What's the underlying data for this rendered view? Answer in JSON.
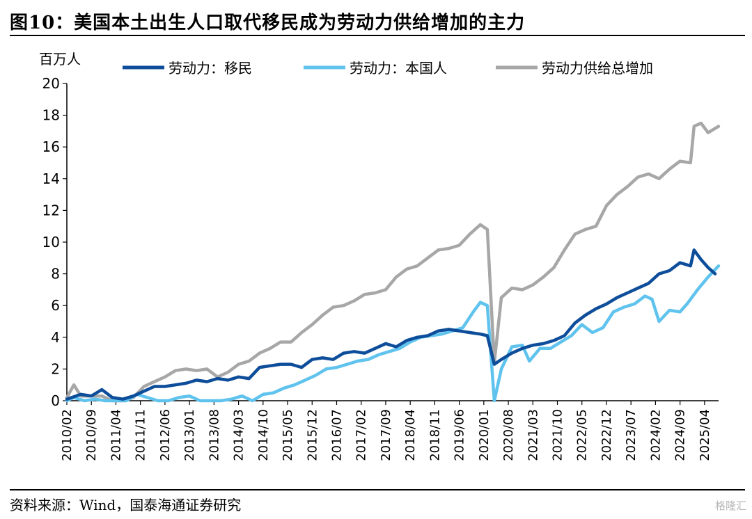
{
  "title": "图10：美国本土出生人口取代移民成为劳动力供给增加的主力",
  "source": "资料来源：Wind，国泰海通证券研究",
  "watermark": "格隆汇",
  "chart_data": {
    "type": "line",
    "unit_label": "百万人",
    "ylim": [
      0,
      20
    ],
    "yticks": [
      0,
      2,
      4,
      6,
      8,
      10,
      12,
      14,
      16,
      18,
      20
    ],
    "xlim": [
      "2010/02",
      "2025/08"
    ],
    "x_tick_labels": [
      "2010/02",
      "2010/09",
      "2011/04",
      "2011/11",
      "2012/06",
      "2013/01",
      "2013/08",
      "2014/03",
      "2014/10",
      "2015/05",
      "2015/12",
      "2016/07",
      "2017/02",
      "2017/09",
      "2018/04",
      "2018/11",
      "2019/06",
      "2020/01",
      "2020/08",
      "2021/03",
      "2021/10",
      "2022/05",
      "2022/12",
      "2023/07",
      "2024/02",
      "2024/09",
      "2025/04"
    ],
    "legend_position": "top",
    "grid": false,
    "series": [
      {
        "name": "劳动力：移民",
        "color": "#0d4d9a",
        "points": [
          [
            "2010/02",
            0.1
          ],
          [
            "2010/06",
            0.4
          ],
          [
            "2010/09",
            0.3
          ],
          [
            "2010/12",
            0.7
          ],
          [
            "2011/03",
            0.2
          ],
          [
            "2011/06",
            0.1
          ],
          [
            "2011/09",
            0.3
          ],
          [
            "2011/12",
            0.6
          ],
          [
            "2012/03",
            0.9
          ],
          [
            "2012/06",
            0.9
          ],
          [
            "2012/09",
            1.0
          ],
          [
            "2012/12",
            1.1
          ],
          [
            "2013/03",
            1.3
          ],
          [
            "2013/06",
            1.2
          ],
          [
            "2013/09",
            1.4
          ],
          [
            "2013/12",
            1.3
          ],
          [
            "2014/03",
            1.5
          ],
          [
            "2014/06",
            1.4
          ],
          [
            "2014/09",
            2.1
          ],
          [
            "2014/12",
            2.2
          ],
          [
            "2015/03",
            2.3
          ],
          [
            "2015/06",
            2.3
          ],
          [
            "2015/09",
            2.1
          ],
          [
            "2015/12",
            2.6
          ],
          [
            "2016/03",
            2.7
          ],
          [
            "2016/06",
            2.6
          ],
          [
            "2016/09",
            3.0
          ],
          [
            "2016/12",
            3.1
          ],
          [
            "2017/03",
            3.0
          ],
          [
            "2017/06",
            3.3
          ],
          [
            "2017/09",
            3.6
          ],
          [
            "2017/12",
            3.4
          ],
          [
            "2018/03",
            3.8
          ],
          [
            "2018/06",
            4.0
          ],
          [
            "2018/09",
            4.1
          ],
          [
            "2018/12",
            4.4
          ],
          [
            "2019/03",
            4.5
          ],
          [
            "2019/06",
            4.4
          ],
          [
            "2019/09",
            4.3
          ],
          [
            "2019/12",
            4.2
          ],
          [
            "2020/02",
            4.1
          ],
          [
            "2020/04",
            2.3
          ],
          [
            "2020/06",
            2.6
          ],
          [
            "2020/09",
            3.0
          ],
          [
            "2020/12",
            3.3
          ],
          [
            "2021/03",
            3.5
          ],
          [
            "2021/06",
            3.6
          ],
          [
            "2021/09",
            3.8
          ],
          [
            "2021/12",
            4.1
          ],
          [
            "2022/03",
            4.9
          ],
          [
            "2022/06",
            5.4
          ],
          [
            "2022/09",
            5.8
          ],
          [
            "2022/12",
            6.1
          ],
          [
            "2023/03",
            6.5
          ],
          [
            "2023/06",
            6.8
          ],
          [
            "2023/09",
            7.1
          ],
          [
            "2023/12",
            7.4
          ],
          [
            "2024/03",
            8.0
          ],
          [
            "2024/06",
            8.2
          ],
          [
            "2024/09",
            8.7
          ],
          [
            "2024/12",
            8.5
          ],
          [
            "2025/01",
            9.5
          ],
          [
            "2025/03",
            8.9
          ],
          [
            "2025/05",
            8.4
          ],
          [
            "2025/07",
            8.0
          ]
        ]
      },
      {
        "name": "劳动力：本国人",
        "color": "#5fc3ee",
        "points": [
          [
            "2010/02",
            0.0
          ],
          [
            "2010/04",
            0.2
          ],
          [
            "2010/07",
            0.0
          ],
          [
            "2010/10",
            0.1
          ],
          [
            "2011/01",
            0.0
          ],
          [
            "2011/04",
            0.0
          ],
          [
            "2011/07",
            0.0
          ],
          [
            "2011/10",
            0.4
          ],
          [
            "2012/01",
            0.2
          ],
          [
            "2012/04",
            0.0
          ],
          [
            "2012/07",
            0.0
          ],
          [
            "2012/10",
            0.2
          ],
          [
            "2013/01",
            0.3
          ],
          [
            "2013/04",
            0.0
          ],
          [
            "2013/07",
            0.0
          ],
          [
            "2013/10",
            0.0
          ],
          [
            "2014/01",
            0.1
          ],
          [
            "2014/04",
            0.3
          ],
          [
            "2014/07",
            0.0
          ],
          [
            "2014/10",
            0.4
          ],
          [
            "2015/01",
            0.5
          ],
          [
            "2015/04",
            0.8
          ],
          [
            "2015/07",
            1.0
          ],
          [
            "2015/10",
            1.3
          ],
          [
            "2016/01",
            1.6
          ],
          [
            "2016/04",
            2.0
          ],
          [
            "2016/07",
            2.1
          ],
          [
            "2016/10",
            2.3
          ],
          [
            "2017/01",
            2.5
          ],
          [
            "2017/04",
            2.6
          ],
          [
            "2017/07",
            2.9
          ],
          [
            "2017/10",
            3.1
          ],
          [
            "2018/01",
            3.3
          ],
          [
            "2018/04",
            3.7
          ],
          [
            "2018/07",
            4.0
          ],
          [
            "2018/10",
            4.1
          ],
          [
            "2019/01",
            4.2
          ],
          [
            "2019/04",
            4.4
          ],
          [
            "2019/07",
            4.6
          ],
          [
            "2019/10",
            5.6
          ],
          [
            "2019/12",
            6.2
          ],
          [
            "2020/02",
            6.0
          ],
          [
            "2020/04",
            0.0
          ],
          [
            "2020/06",
            2.0
          ],
          [
            "2020/09",
            3.4
          ],
          [
            "2020/12",
            3.5
          ],
          [
            "2021/02",
            2.5
          ],
          [
            "2021/05",
            3.3
          ],
          [
            "2021/08",
            3.3
          ],
          [
            "2021/11",
            3.7
          ],
          [
            "2022/02",
            4.1
          ],
          [
            "2022/05",
            4.8
          ],
          [
            "2022/08",
            4.3
          ],
          [
            "2022/11",
            4.6
          ],
          [
            "2023/02",
            5.6
          ],
          [
            "2023/05",
            5.9
          ],
          [
            "2023/08",
            6.1
          ],
          [
            "2023/11",
            6.6
          ],
          [
            "2024/01",
            6.4
          ],
          [
            "2024/03",
            5.0
          ],
          [
            "2024/06",
            5.7
          ],
          [
            "2024/09",
            5.6
          ],
          [
            "2024/11",
            6.1
          ],
          [
            "2025/02",
            7.0
          ],
          [
            "2025/05",
            7.8
          ],
          [
            "2025/08",
            8.5
          ]
        ]
      },
      {
        "name": "劳动力供给总增加",
        "color": "#a7a7a7",
        "points": [
          [
            "2010/02",
            0.2
          ],
          [
            "2010/04",
            1.0
          ],
          [
            "2010/06",
            0.3
          ],
          [
            "2010/09",
            0.3
          ],
          [
            "2010/12",
            0.3
          ],
          [
            "2011/03",
            0.0
          ],
          [
            "2011/06",
            0.0
          ],
          [
            "2011/09",
            0.2
          ],
          [
            "2011/12",
            0.9
          ],
          [
            "2012/03",
            1.2
          ],
          [
            "2012/06",
            1.5
          ],
          [
            "2012/09",
            1.9
          ],
          [
            "2012/12",
            2.0
          ],
          [
            "2013/03",
            1.9
          ],
          [
            "2013/06",
            2.0
          ],
          [
            "2013/09",
            1.5
          ],
          [
            "2013/12",
            1.8
          ],
          [
            "2014/03",
            2.3
          ],
          [
            "2014/06",
            2.5
          ],
          [
            "2014/09",
            3.0
          ],
          [
            "2014/12",
            3.3
          ],
          [
            "2015/03",
            3.7
          ],
          [
            "2015/06",
            3.7
          ],
          [
            "2015/09",
            4.3
          ],
          [
            "2015/12",
            4.8
          ],
          [
            "2016/03",
            5.4
          ],
          [
            "2016/06",
            5.9
          ],
          [
            "2016/09",
            6.0
          ],
          [
            "2016/12",
            6.3
          ],
          [
            "2017/03",
            6.7
          ],
          [
            "2017/06",
            6.8
          ],
          [
            "2017/09",
            7.0
          ],
          [
            "2017/12",
            7.8
          ],
          [
            "2018/03",
            8.3
          ],
          [
            "2018/06",
            8.5
          ],
          [
            "2018/09",
            9.0
          ],
          [
            "2018/12",
            9.5
          ],
          [
            "2019/03",
            9.6
          ],
          [
            "2019/06",
            9.8
          ],
          [
            "2019/09",
            10.5
          ],
          [
            "2019/12",
            11.1
          ],
          [
            "2020/02",
            10.8
          ],
          [
            "2020/04",
            2.4
          ],
          [
            "2020/06",
            6.5
          ],
          [
            "2020/09",
            7.1
          ],
          [
            "2020/12",
            7.0
          ],
          [
            "2021/03",
            7.3
          ],
          [
            "2021/06",
            7.8
          ],
          [
            "2021/09",
            8.4
          ],
          [
            "2021/12",
            9.5
          ],
          [
            "2022/03",
            10.5
          ],
          [
            "2022/06",
            10.8
          ],
          [
            "2022/09",
            11.0
          ],
          [
            "2022/12",
            12.3
          ],
          [
            "2023/03",
            13.0
          ],
          [
            "2023/06",
            13.5
          ],
          [
            "2023/09",
            14.1
          ],
          [
            "2023/12",
            14.3
          ],
          [
            "2024/03",
            14.0
          ],
          [
            "2024/06",
            14.6
          ],
          [
            "2024/09",
            15.1
          ],
          [
            "2024/12",
            15.0
          ],
          [
            "2025/01",
            17.3
          ],
          [
            "2025/03",
            17.5
          ],
          [
            "2025/05",
            16.9
          ],
          [
            "2025/08",
            17.3
          ]
        ]
      }
    ]
  }
}
